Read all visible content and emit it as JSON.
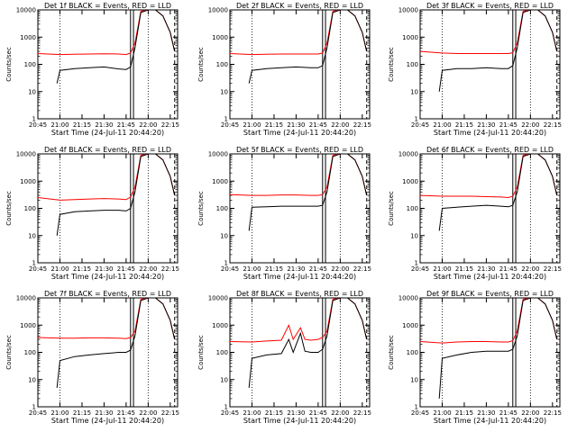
{
  "figure": {
    "xlabel": "Start Time (24-Jul-11 20:44:20)",
    "ylabel": "Counts/sec",
    "x_tick_labels": [
      "20:45",
      "21:00",
      "21:15",
      "21:30",
      "21:45",
      "22:00",
      "22:15"
    ],
    "y_tick_labels": [
      "1",
      "10",
      "100",
      "1000",
      "10000"
    ],
    "colors": {
      "events": "#000000",
      "lld": "#ff0000",
      "axes": "#000000"
    }
  },
  "chart_data": [
    {
      "type": "line",
      "title": "Det 1f BLACK = Events, RED = LLD",
      "xlabel": "Start Time (24-Jul-11 20:44:20)",
      "ylabel": "Counts/sec",
      "y_scale": "log",
      "xlim": [
        "20:45",
        "22:20"
      ],
      "ylim": [
        1,
        10000
      ],
      "series": [
        {
          "name": "Events",
          "color": "#000000",
          "x": [
            "20:58",
            "21:00",
            "21:10",
            "21:20",
            "21:30",
            "21:40",
            "21:45",
            "21:48",
            "21:51",
            "21:55",
            "22:00",
            "22:05",
            "22:10",
            "22:15",
            "22:18"
          ],
          "y": [
            20,
            60,
            70,
            75,
            80,
            68,
            65,
            80,
            400,
            8000,
            10000,
            10000,
            6000,
            1500,
            300
          ]
        },
        {
          "name": "LLD",
          "color": "#ff0000",
          "x": [
            "20:45",
            "21:00",
            "21:10",
            "21:20",
            "21:30",
            "21:40",
            "21:45",
            "21:48",
            "21:51",
            "21:55",
            "22:00",
            "22:05",
            "22:10",
            "22:15",
            "22:18"
          ],
          "y": [
            250,
            230,
            235,
            240,
            245,
            240,
            230,
            260,
            600,
            9000,
            10000,
            10000,
            6000,
            1500,
            300
          ]
        }
      ],
      "vlines": {
        "dotted": [
          "21:00",
          "22:00"
        ],
        "solid": [
          "21:48",
          "21:50"
        ],
        "dashed": [
          "22:18"
        ]
      },
      "grid": false
    },
    {
      "type": "line",
      "title": "Det 2f BLACK = Events, RED = LLD",
      "xlabel": "Start Time (24-Jul-11 20:44:20)",
      "ylabel": "Counts/sec",
      "y_scale": "log",
      "xlim": [
        "20:45",
        "22:20"
      ],
      "ylim": [
        1,
        10000
      ],
      "series": [
        {
          "name": "Events",
          "color": "#000000",
          "x": [
            "20:58",
            "21:00",
            "21:10",
            "21:20",
            "21:30",
            "21:40",
            "21:45",
            "21:48",
            "21:51",
            "21:55",
            "22:00",
            "22:05",
            "22:10",
            "22:15",
            "22:18"
          ],
          "y": [
            20,
            60,
            70,
            75,
            80,
            75,
            75,
            90,
            400,
            8000,
            10000,
            10000,
            6000,
            1500,
            300
          ]
        },
        {
          "name": "LLD",
          "color": "#ff0000",
          "x": [
            "20:45",
            "21:00",
            "21:10",
            "21:20",
            "21:30",
            "21:40",
            "21:45",
            "21:48",
            "21:51",
            "21:55",
            "22:00",
            "22:05",
            "22:10",
            "22:15",
            "22:18"
          ],
          "y": [
            250,
            230,
            235,
            240,
            240,
            240,
            240,
            260,
            600,
            9000,
            10000,
            10000,
            6000,
            1500,
            300
          ]
        }
      ],
      "vlines": {
        "dotted": [
          "21:00",
          "22:00"
        ],
        "solid": [
          "21:48",
          "21:50"
        ],
        "dashed": [
          "22:18"
        ]
      },
      "grid": false
    },
    {
      "type": "line",
      "title": "Det 3f BLACK = Events, RED = LLD",
      "xlabel": "Start Time (24-Jul-11 20:44:20)",
      "ylabel": "Counts/sec",
      "y_scale": "log",
      "xlim": [
        "20:45",
        "22:20"
      ],
      "ylim": [
        1,
        10000
      ],
      "series": [
        {
          "name": "Events",
          "color": "#000000",
          "x": [
            "20:58",
            "21:00",
            "21:10",
            "21:20",
            "21:30",
            "21:40",
            "21:45",
            "21:48",
            "21:51",
            "21:55",
            "22:00",
            "22:05",
            "22:10",
            "22:15",
            "22:18"
          ],
          "y": [
            10,
            60,
            70,
            70,
            75,
            70,
            70,
            90,
            400,
            8000,
            10000,
            10000,
            6000,
            1500,
            300
          ]
        },
        {
          "name": "LLD",
          "color": "#ff0000",
          "x": [
            "20:45",
            "21:00",
            "21:10",
            "21:20",
            "21:30",
            "21:40",
            "21:45",
            "21:48",
            "21:51",
            "21:55",
            "22:00",
            "22:05",
            "22:10",
            "22:15",
            "22:18"
          ],
          "y": [
            300,
            260,
            250,
            250,
            250,
            250,
            250,
            270,
            600,
            9000,
            10000,
            10000,
            6000,
            1500,
            300
          ]
        }
      ],
      "vlines": {
        "dotted": [
          "21:00",
          "22:00"
        ],
        "solid": [
          "21:48",
          "21:50"
        ],
        "dashed": [
          "22:18"
        ]
      },
      "grid": false
    },
    {
      "type": "line",
      "title": "Det 4f BLACK = Events, RED = LLD",
      "xlabel": "Start Time (24-Jul-11 20:44:20)",
      "ylabel": "Counts/sec",
      "y_scale": "log",
      "xlim": [
        "20:45",
        "22:20"
      ],
      "ylim": [
        1,
        10000
      ],
      "series": [
        {
          "name": "Events",
          "color": "#000000",
          "x": [
            "20:58",
            "21:00",
            "21:10",
            "21:20",
            "21:30",
            "21:40",
            "21:45",
            "21:48",
            "21:51",
            "21:55",
            "22:00",
            "22:05",
            "22:10",
            "22:15",
            "22:18"
          ],
          "y": [
            10,
            60,
            75,
            80,
            85,
            85,
            80,
            100,
            400,
            8000,
            10000,
            10000,
            6000,
            1500,
            300
          ]
        },
        {
          "name": "LLD",
          "color": "#ff0000",
          "x": [
            "20:45",
            "21:00",
            "21:10",
            "21:20",
            "21:30",
            "21:40",
            "21:45",
            "21:48",
            "21:51",
            "21:55",
            "22:00",
            "22:05",
            "22:10",
            "22:15",
            "22:18"
          ],
          "y": [
            250,
            200,
            210,
            220,
            230,
            220,
            210,
            260,
            600,
            9000,
            10000,
            10000,
            6000,
            1500,
            300
          ]
        }
      ],
      "vlines": {
        "dotted": [
          "21:00",
          "22:00"
        ],
        "solid": [
          "21:48",
          "21:50"
        ],
        "dashed": [
          "22:18"
        ]
      },
      "grid": false
    },
    {
      "type": "line",
      "title": "Det 5f BLACK = Events, RED = LLD",
      "xlabel": "Start Time (24-Jul-11 20:44:20)",
      "ylabel": "Counts/sec",
      "y_scale": "log",
      "xlim": [
        "20:45",
        "22:20"
      ],
      "ylim": [
        1,
        10000
      ],
      "series": [
        {
          "name": "Events",
          "color": "#000000",
          "x": [
            "20:58",
            "21:00",
            "21:10",
            "21:20",
            "21:30",
            "21:40",
            "21:45",
            "21:48",
            "21:51",
            "21:55",
            "22:00",
            "22:05",
            "22:10",
            "22:15",
            "22:18"
          ],
          "y": [
            15,
            110,
            115,
            120,
            120,
            120,
            120,
            130,
            400,
            8000,
            10000,
            10000,
            6000,
            1500,
            300
          ]
        },
        {
          "name": "LLD",
          "color": "#ff0000",
          "x": [
            "20:45",
            "21:00",
            "21:10",
            "21:20",
            "21:30",
            "21:40",
            "21:45",
            "21:48",
            "21:51",
            "21:55",
            "22:00",
            "22:05",
            "22:10",
            "22:15",
            "22:18"
          ],
          "y": [
            320,
            300,
            300,
            310,
            310,
            300,
            300,
            320,
            600,
            9000,
            10000,
            10000,
            6000,
            1500,
            300
          ]
        }
      ],
      "vlines": {
        "dotted": [
          "21:00",
          "22:00"
        ],
        "solid": [
          "21:48",
          "21:50"
        ],
        "dashed": [
          "22:18"
        ]
      },
      "grid": false
    },
    {
      "type": "line",
      "title": "Det 6f BLACK = Events, RED = LLD",
      "xlabel": "Start Time (24-Jul-11 20:44:20)",
      "ylabel": "Counts/sec",
      "y_scale": "log",
      "xlim": [
        "20:45",
        "22:20"
      ],
      "ylim": [
        1,
        10000
      ],
      "series": [
        {
          "name": "Events",
          "color": "#000000",
          "x": [
            "20:58",
            "21:00",
            "21:10",
            "21:20",
            "21:30",
            "21:40",
            "21:45",
            "21:48",
            "21:51",
            "21:55",
            "22:00",
            "22:05",
            "22:10",
            "22:15",
            "22:18"
          ],
          "y": [
            15,
            100,
            110,
            120,
            130,
            120,
            115,
            130,
            400,
            8000,
            10000,
            10000,
            6000,
            1500,
            300
          ]
        },
        {
          "name": "LLD",
          "color": "#ff0000",
          "x": [
            "20:45",
            "21:00",
            "21:10",
            "21:20",
            "21:30",
            "21:40",
            "21:45",
            "21:48",
            "21:51",
            "21:55",
            "22:00",
            "22:05",
            "22:10",
            "22:15",
            "22:18"
          ],
          "y": [
            300,
            280,
            280,
            280,
            270,
            260,
            250,
            280,
            600,
            9000,
            10000,
            10000,
            6000,
            1500,
            300
          ]
        }
      ],
      "vlines": {
        "dotted": [
          "21:00",
          "22:00"
        ],
        "solid": [
          "21:48",
          "21:50"
        ],
        "dashed": [
          "22:18"
        ]
      },
      "grid": false
    },
    {
      "type": "line",
      "title": "Det 7f BLACK = Events, RED = LLD",
      "xlabel": "Start Time (24-Jul-11 20:44:20)",
      "ylabel": "Counts/sec",
      "y_scale": "log",
      "xlim": [
        "20:45",
        "22:20"
      ],
      "ylim": [
        1,
        10000
      ],
      "series": [
        {
          "name": "Events",
          "color": "#000000",
          "x": [
            "20:58",
            "21:00",
            "21:10",
            "21:20",
            "21:30",
            "21:40",
            "21:45",
            "21:48",
            "21:51",
            "21:55",
            "22:00",
            "22:05",
            "22:10",
            "22:15",
            "22:18"
          ],
          "y": [
            5,
            50,
            70,
            80,
            90,
            100,
            100,
            120,
            400,
            8000,
            10000,
            10000,
            6000,
            1500,
            300
          ]
        },
        {
          "name": "LLD",
          "color": "#ff0000",
          "x": [
            "20:45",
            "21:00",
            "21:10",
            "21:20",
            "21:30",
            "21:40",
            "21:45",
            "21:48",
            "21:51",
            "21:55",
            "22:00",
            "22:05",
            "22:10",
            "22:15",
            "22:18"
          ],
          "y": [
            350,
            330,
            330,
            340,
            340,
            330,
            320,
            350,
            600,
            9000,
            10000,
            10000,
            6000,
            1500,
            300
          ]
        }
      ],
      "vlines": {
        "dotted": [
          "21:00",
          "22:00"
        ],
        "solid": [
          "21:48",
          "21:50"
        ],
        "dashed": [
          "22:18"
        ]
      },
      "grid": false
    },
    {
      "type": "line",
      "title": "Det 8f BLACK = Events, RED = LLD",
      "xlabel": "Start Time (24-Jul-11 20:44:20)",
      "ylabel": "Counts/sec",
      "y_scale": "log",
      "xlim": [
        "20:45",
        "22:20"
      ],
      "ylim": [
        1,
        10000
      ],
      "series": [
        {
          "name": "Events",
          "color": "#000000",
          "x": [
            "20:58",
            "21:00",
            "21:10",
            "21:20",
            "21:25",
            "21:28",
            "21:33",
            "21:36",
            "21:40",
            "21:45",
            "21:48",
            "21:51",
            "21:55",
            "22:00",
            "22:05",
            "22:10",
            "22:15",
            "22:18"
          ],
          "y": [
            5,
            60,
            80,
            90,
            300,
            100,
            500,
            110,
            100,
            100,
            130,
            400,
            8000,
            10000,
            10000,
            6000,
            1500,
            300
          ]
        },
        {
          "name": "LLD",
          "color": "#ff0000",
          "x": [
            "20:45",
            "21:00",
            "21:10",
            "21:20",
            "21:25",
            "21:28",
            "21:33",
            "21:36",
            "21:40",
            "21:45",
            "21:48",
            "21:51",
            "21:55",
            "22:00",
            "22:05",
            "22:10",
            "22:15",
            "22:18"
          ],
          "y": [
            250,
            240,
            260,
            280,
            1000,
            300,
            800,
            300,
            280,
            300,
            350,
            600,
            9000,
            10000,
            10000,
            6000,
            1500,
            300
          ]
        }
      ],
      "vlines": {
        "dotted": [
          "21:00",
          "22:00"
        ],
        "solid": [
          "21:48",
          "21:50"
        ],
        "dashed": [
          "22:18"
        ]
      },
      "grid": false
    },
    {
      "type": "line",
      "title": "Det 9f BLACK = Events, RED = LLD",
      "xlabel": "Start Time (24-Jul-11 20:44:20)",
      "ylabel": "Counts/sec",
      "y_scale": "log",
      "xlim": [
        "20:45",
        "22:20"
      ],
      "ylim": [
        1,
        10000
      ],
      "series": [
        {
          "name": "Events",
          "color": "#000000",
          "x": [
            "20:58",
            "21:00",
            "21:10",
            "21:20",
            "21:30",
            "21:40",
            "21:45",
            "21:48",
            "21:51",
            "21:55",
            "22:00",
            "22:05",
            "22:10",
            "22:15",
            "22:18"
          ],
          "y": [
            2,
            60,
            80,
            100,
            110,
            110,
            110,
            130,
            400,
            8000,
            10000,
            10000,
            6000,
            1500,
            300
          ]
        },
        {
          "name": "LLD",
          "color": "#ff0000",
          "x": [
            "20:45",
            "21:00",
            "21:10",
            "21:20",
            "21:30",
            "21:40",
            "21:45",
            "21:48",
            "21:51",
            "21:55",
            "22:00",
            "22:05",
            "22:10",
            "22:15",
            "22:18"
          ],
          "y": [
            250,
            220,
            240,
            250,
            250,
            240,
            240,
            270,
            600,
            9000,
            10000,
            10000,
            6000,
            1500,
            300
          ]
        }
      ],
      "vlines": {
        "dotted": [
          "21:00",
          "22:00"
        ],
        "solid": [
          "21:48",
          "21:50"
        ],
        "dashed": [
          "22:18"
        ]
      },
      "grid": false
    }
  ]
}
